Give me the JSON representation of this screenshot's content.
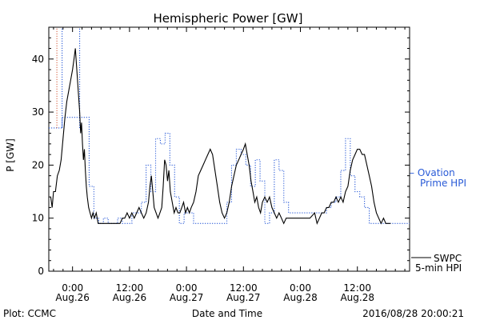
{
  "chart_data": {
    "type": "line",
    "title": "Hemispheric Power [GW]",
    "ylabel": "P [GW]",
    "xlabel": "Date and Time",
    "ylim": [
      0,
      46
    ],
    "xlim": [
      -5,
      71
    ],
    "y_ticks": [
      0,
      10,
      20,
      30,
      40
    ],
    "x_ticks": [
      {
        "x": 0,
        "time": "0:00",
        "date": "Aug.26"
      },
      {
        "x": 12,
        "time": "12:00",
        "date": "Aug.26"
      },
      {
        "x": 24,
        "time": "0:00",
        "date": "Aug.27"
      },
      {
        "x": 36,
        "time": "12:00",
        "date": "Aug.27"
      },
      {
        "x": 48,
        "time": "0:00",
        "date": "Aug.28"
      },
      {
        "x": 60,
        "time": "12:00",
        "date": "Aug.28"
      }
    ],
    "x_units": "hours since 0:00 Aug.26",
    "plot_credit": "Plot: CCMC",
    "timestamp": "2016/08/28 20:00:21",
    "series": [
      {
        "name": "SWPC 5-min HPI",
        "legend_lines": [
          "SWPC",
          "5-min HPI"
        ],
        "color": "#000000",
        "style": "solid",
        "points": [
          [
            -4.6,
            14
          ],
          [
            -4.3,
            12
          ],
          [
            -4.0,
            15
          ],
          [
            -3.6,
            15
          ],
          [
            -3.2,
            18
          ],
          [
            -2.8,
            19
          ],
          [
            -2.4,
            21
          ],
          [
            -2.0,
            25
          ],
          [
            -1.6,
            29
          ],
          [
            -1.2,
            32
          ],
          [
            -0.8,
            34
          ],
          [
            -0.4,
            36
          ],
          [
            0,
            38
          ],
          [
            0.3,
            40
          ],
          [
            0.6,
            42
          ],
          [
            0.9,
            38
          ],
          [
            1.2,
            34
          ],
          [
            1.5,
            30
          ],
          [
            1.7,
            26
          ],
          [
            1.9,
            28
          ],
          [
            2.1,
            24
          ],
          [
            2.3,
            21
          ],
          [
            2.5,
            23
          ],
          [
            2.7,
            19
          ],
          [
            2.9,
            16
          ],
          [
            3.1,
            14
          ],
          [
            3.4,
            12
          ],
          [
            3.7,
            11
          ],
          [
            4.0,
            10
          ],
          [
            4.3,
            11
          ],
          [
            4.6,
            10
          ],
          [
            5.0,
            11
          ],
          [
            5.4,
            9
          ],
          [
            6,
            9
          ],
          [
            7,
            9
          ],
          [
            8,
            9
          ],
          [
            9,
            9
          ],
          [
            10,
            9
          ],
          [
            10.5,
            10
          ],
          [
            11,
            10
          ],
          [
            11.5,
            11
          ],
          [
            12,
            10
          ],
          [
            12.5,
            11
          ],
          [
            13,
            10
          ],
          [
            13.5,
            11
          ],
          [
            14,
            12
          ],
          [
            14.5,
            11
          ],
          [
            15,
            10
          ],
          [
            15.5,
            11
          ],
          [
            16,
            13
          ],
          [
            16.3,
            16
          ],
          [
            16.6,
            18
          ],
          [
            16.9,
            15
          ],
          [
            17.2,
            12
          ],
          [
            17.6,
            11
          ],
          [
            18,
            10
          ],
          [
            18.4,
            11
          ],
          [
            18.8,
            12
          ],
          [
            19.1,
            16
          ],
          [
            19.4,
            21
          ],
          [
            19.7,
            20
          ],
          [
            20,
            17
          ],
          [
            20.3,
            19
          ],
          [
            20.6,
            15
          ],
          [
            21,
            13
          ],
          [
            21.4,
            11
          ],
          [
            21.8,
            12
          ],
          [
            22.2,
            11
          ],
          [
            22.6,
            11
          ],
          [
            23,
            12
          ],
          [
            23.4,
            13
          ],
          [
            23.8,
            11
          ],
          [
            24.2,
            12
          ],
          [
            24.6,
            11
          ],
          [
            25,
            12
          ],
          [
            25.5,
            13
          ],
          [
            26,
            15
          ],
          [
            26.5,
            18
          ],
          [
            27,
            19
          ],
          [
            27.5,
            20
          ],
          [
            28,
            21
          ],
          [
            28.5,
            22
          ],
          [
            29,
            23
          ],
          [
            29.5,
            22
          ],
          [
            30,
            19
          ],
          [
            30.5,
            16
          ],
          [
            31,
            13
          ],
          [
            31.5,
            11
          ],
          [
            32,
            10
          ],
          [
            32.5,
            11
          ],
          [
            33,
            13
          ],
          [
            33.5,
            16
          ],
          [
            34,
            18
          ],
          [
            34.5,
            20
          ],
          [
            35,
            21
          ],
          [
            35.5,
            22
          ],
          [
            36,
            23
          ],
          [
            36.4,
            24
          ],
          [
            36.8,
            22
          ],
          [
            37.2,
            20
          ],
          [
            37.6,
            17
          ],
          [
            38,
            15
          ],
          [
            38.4,
            13
          ],
          [
            38.8,
            14
          ],
          [
            39.2,
            12
          ],
          [
            39.6,
            11
          ],
          [
            40,
            13
          ],
          [
            40.5,
            14
          ],
          [
            41,
            13
          ],
          [
            41.5,
            14
          ],
          [
            42,
            12
          ],
          [
            42.5,
            11
          ],
          [
            43,
            10
          ],
          [
            43.5,
            11
          ],
          [
            44,
            10
          ],
          [
            44.5,
            9
          ],
          [
            45,
            10
          ],
          [
            46,
            10
          ],
          [
            47,
            10
          ],
          [
            48,
            10
          ],
          [
            49,
            10
          ],
          [
            50,
            10
          ],
          [
            51,
            11
          ],
          [
            51.5,
            9
          ],
          [
            52,
            10
          ],
          [
            52.5,
            11
          ],
          [
            53,
            11
          ],
          [
            53.5,
            12
          ],
          [
            54,
            12
          ],
          [
            54.5,
            13
          ],
          [
            55,
            13
          ],
          [
            55.5,
            14
          ],
          [
            56,
            13
          ],
          [
            56.5,
            14
          ],
          [
            57,
            13
          ],
          [
            57.5,
            15
          ],
          [
            58,
            16
          ],
          [
            58.5,
            19
          ],
          [
            59,
            21
          ],
          [
            59.5,
            22
          ],
          [
            60,
            23
          ],
          [
            60.5,
            23
          ],
          [
            61,
            22
          ],
          [
            61.5,
            22
          ],
          [
            62,
            20
          ],
          [
            62.5,
            18
          ],
          [
            63,
            16
          ],
          [
            63.5,
            13
          ],
          [
            64,
            11
          ],
          [
            64.5,
            10
          ],
          [
            65,
            9
          ],
          [
            65.5,
            10
          ],
          [
            66,
            9
          ],
          [
            66.5,
            9
          ],
          [
            67,
            9
          ]
        ]
      },
      {
        "name": "Ovation Prime HPI",
        "legend_lines": [
          "– Ovation",
          "Prime HPI"
        ],
        "color": "#2a5bd7",
        "style": "dotted",
        "steps": [
          [
            -5,
            27
          ],
          [
            -2.2,
            29
          ],
          [
            1.5,
            29
          ],
          [
            3.5,
            16
          ],
          [
            4.5,
            10
          ],
          [
            5.5,
            9
          ],
          [
            6.5,
            10
          ],
          [
            7.5,
            9
          ],
          [
            9.5,
            10
          ],
          [
            10.5,
            9
          ],
          [
            12.5,
            11
          ],
          [
            14.5,
            13
          ],
          [
            15.5,
            20
          ],
          [
            16.5,
            15
          ],
          [
            17.5,
            25
          ],
          [
            18.5,
            24
          ],
          [
            19.5,
            26
          ],
          [
            20.5,
            20
          ],
          [
            21.5,
            14
          ],
          [
            22.5,
            9
          ],
          [
            23.5,
            11
          ],
          [
            25.5,
            9
          ],
          [
            26.5,
            9
          ],
          [
            28.5,
            9
          ],
          [
            30.5,
            9
          ],
          [
            31.5,
            9
          ],
          [
            32.5,
            13
          ],
          [
            33.5,
            20
          ],
          [
            34.5,
            23
          ],
          [
            35.5,
            22
          ],
          [
            36.5,
            20
          ],
          [
            37.5,
            16
          ],
          [
            38.5,
            21
          ],
          [
            39.5,
            17
          ],
          [
            40.5,
            9
          ],
          [
            41.5,
            11
          ],
          [
            42.5,
            21
          ],
          [
            43.5,
            19
          ],
          [
            44.5,
            13
          ],
          [
            45.5,
            11
          ],
          [
            46.5,
            11
          ],
          [
            47.5,
            11
          ],
          [
            48.5,
            11
          ],
          [
            49.5,
            11
          ],
          [
            50.5,
            11
          ],
          [
            51.5,
            11
          ],
          [
            52.5,
            11
          ],
          [
            53.5,
            12
          ],
          [
            54.5,
            13
          ],
          [
            55.5,
            14
          ],
          [
            56.5,
            19
          ],
          [
            57.5,
            25
          ],
          [
            58.5,
            18
          ],
          [
            59.5,
            15
          ],
          [
            60.5,
            14
          ],
          [
            61.5,
            12
          ],
          [
            62.5,
            9
          ],
          [
            63.5,
            9
          ],
          [
            64.5,
            9
          ],
          [
            65.5,
            9
          ],
          [
            66.5,
            9
          ],
          [
            67.5,
            9
          ],
          [
            68.5,
            9
          ],
          [
            71,
            9
          ]
        ],
        "spike": {
          "x": [
            -2.2,
            1.5
          ],
          "y_min": 27,
          "y_max": 46
        }
      }
    ],
    "legend": {
      "placement": "right",
      "entries": [
        {
          "series": "Ovation Prime HPI",
          "lines": [
            "– Ovation",
            "Prime HPI"
          ]
        },
        {
          "series": "SWPC 5-min HPI",
          "lines": [
            "SWPC",
            "5-min HPI"
          ]
        }
      ]
    }
  }
}
